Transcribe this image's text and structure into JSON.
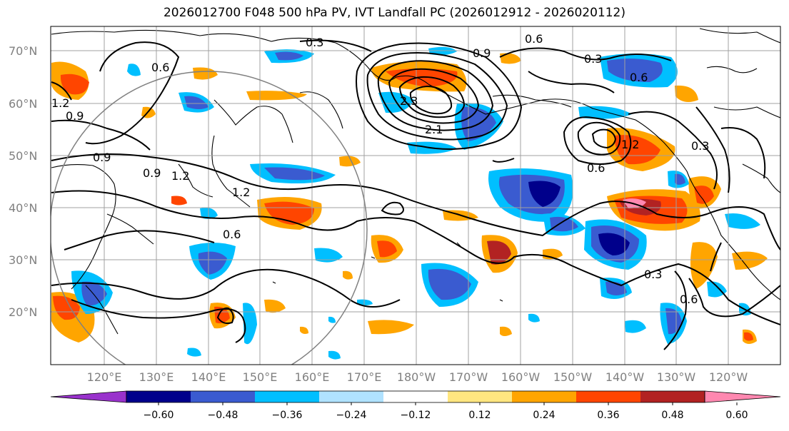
{
  "title": "2026012700 F048 500 hPa PV, IVT Landfall PC (2026012912 - 2026020112)",
  "lat_labels": [
    "70°N",
    "60°N",
    "50°N",
    "40°N",
    "30°N",
    "20°N"
  ],
  "lon_labels": [
    "120°E",
    "130°E",
    "140°E",
    "150°E",
    "160°E",
    "170°E",
    "180°W",
    "170°W",
    "160°W",
    "150°W",
    "140°W",
    "130°W",
    "120°W"
  ],
  "colorbar": {
    "ticks": [
      "−0.60",
      "−0.48",
      "−0.36",
      "−0.24",
      "−0.12",
      "0.12",
      "0.24",
      "0.36",
      "0.48",
      "0.60"
    ],
    "colors": [
      "#9932cc",
      "#00008b",
      "#3a5bd0",
      "#00bfff",
      "#b0e2ff",
      "#ffffff",
      "#ffe680",
      "#ffa500",
      "#ff4500",
      "#b22222",
      "#ff88b0"
    ]
  },
  "contour_labels": [
    "0.3",
    "0.6",
    "0.9",
    "1.2",
    "2.1",
    "2.3",
    "0.6",
    "0.9",
    "1.2",
    "0.9",
    "0.6",
    "0.3",
    "0.6",
    "1.2",
    "0.6",
    "0.3",
    "0.6",
    "0.9",
    "1.2",
    "0.3"
  ],
  "colors": {
    "ocean": "#ffffff",
    "grid": "#a0a0a0",
    "coast": "#000000",
    "circle": "#808080"
  }
}
